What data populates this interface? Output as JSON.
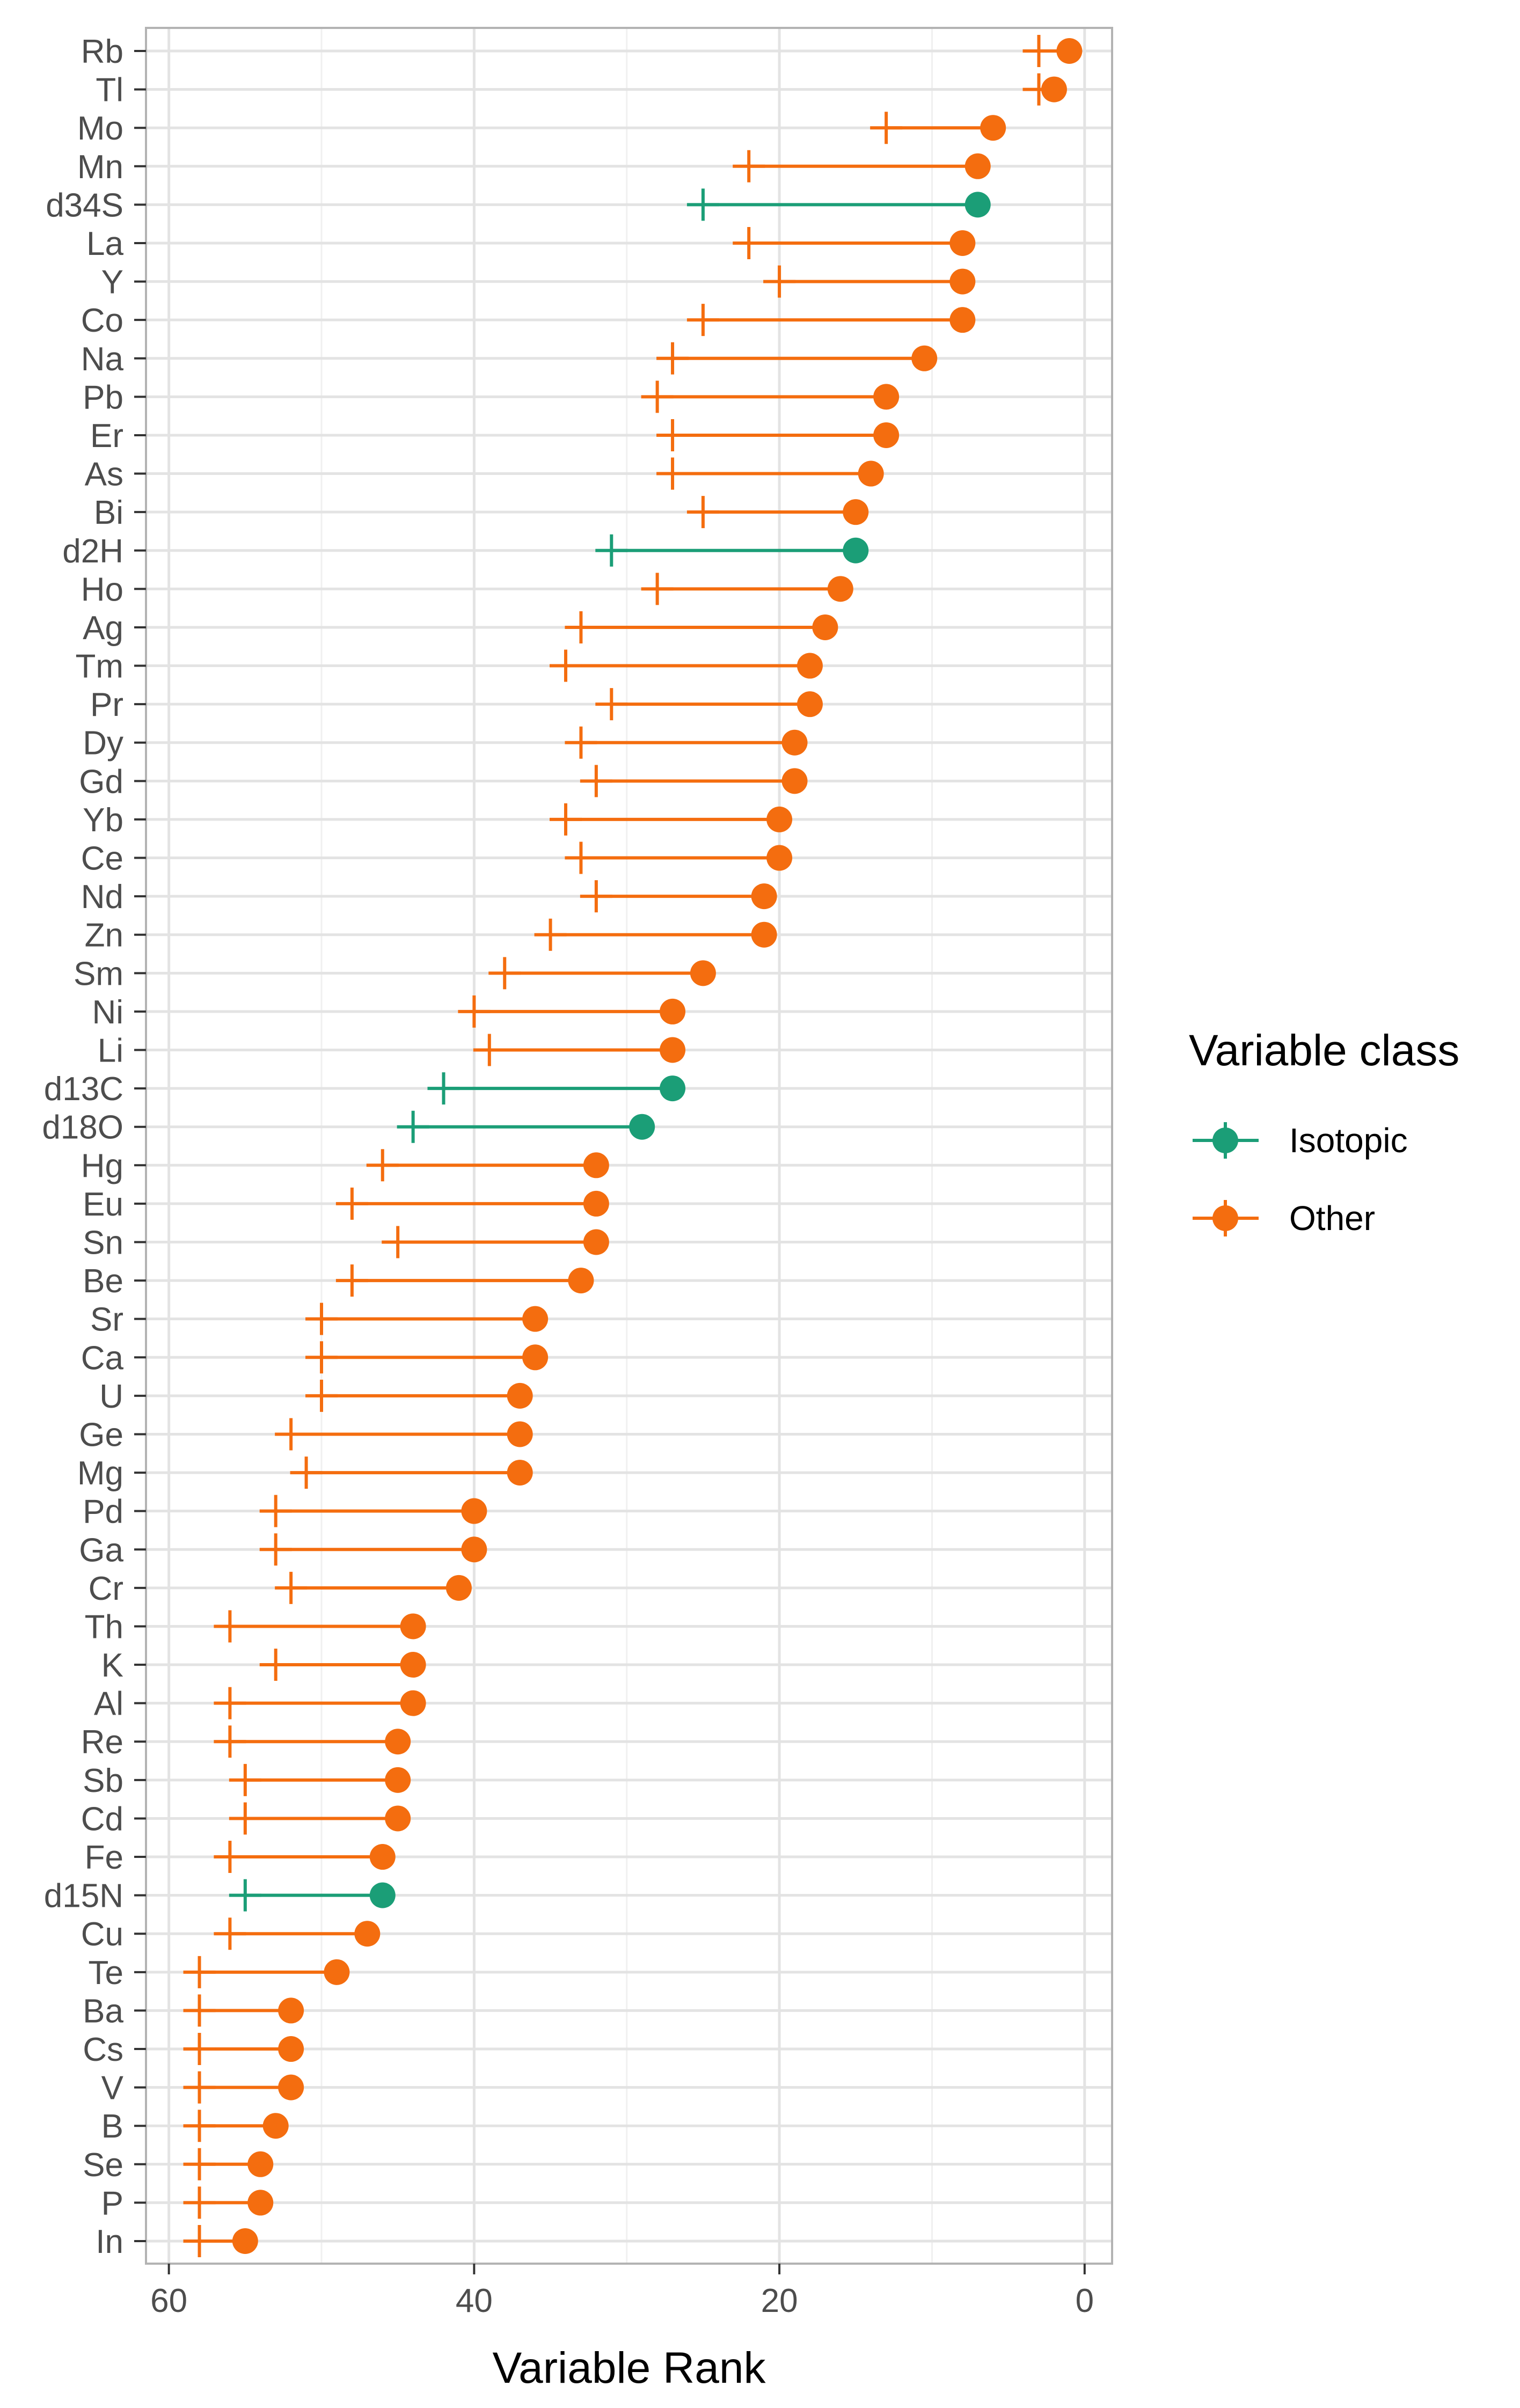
{
  "chart_data": {
    "type": "dumbbell",
    "title": "",
    "xlabel": "Variable Rank",
    "ylabel": "",
    "xlim": [
      61.5,
      -1.8
    ],
    "x_reversed": true,
    "x_ticks": [
      60,
      40,
      20,
      0
    ],
    "grid": true,
    "legend": {
      "title": "Variable class",
      "placement": "right",
      "entries": [
        {
          "name": "Isotopic",
          "color": "#1b9e77"
        },
        {
          "name": "Other",
          "color": "#f46d0f"
        }
      ]
    },
    "series_meaning": {
      "point": "rank (filled circle)",
      "cross": "rank (cross marker)"
    },
    "rows": [
      {
        "label": "Rb",
        "class": "Other",
        "point": 1,
        "cross": 3
      },
      {
        "label": "Tl",
        "class": "Other",
        "point": 2,
        "cross": 3
      },
      {
        "label": "Mo",
        "class": "Other",
        "point": 6,
        "cross": 13
      },
      {
        "label": "Mn",
        "class": "Other",
        "point": 7,
        "cross": 22
      },
      {
        "label": "d34S",
        "class": "Isotopic",
        "point": 7,
        "cross": 25
      },
      {
        "label": "La",
        "class": "Other",
        "point": 8,
        "cross": 22
      },
      {
        "label": "Y",
        "class": "Other",
        "point": 8,
        "cross": 20
      },
      {
        "label": "Co",
        "class": "Other",
        "point": 8,
        "cross": 25
      },
      {
        "label": "Na",
        "class": "Other",
        "point": 10.5,
        "cross": 27
      },
      {
        "label": "Pb",
        "class": "Other",
        "point": 13,
        "cross": 28
      },
      {
        "label": "Er",
        "class": "Other",
        "point": 13,
        "cross": 27
      },
      {
        "label": "As",
        "class": "Other",
        "point": 14,
        "cross": 27
      },
      {
        "label": "Bi",
        "class": "Other",
        "point": 15,
        "cross": 25
      },
      {
        "label": "d2H",
        "class": "Isotopic",
        "point": 15,
        "cross": 31
      },
      {
        "label": "Ho",
        "class": "Other",
        "point": 16,
        "cross": 28
      },
      {
        "label": "Ag",
        "class": "Other",
        "point": 17,
        "cross": 33
      },
      {
        "label": "Tm",
        "class": "Other",
        "point": 18,
        "cross": 34
      },
      {
        "label": "Pr",
        "class": "Other",
        "point": 18,
        "cross": 31
      },
      {
        "label": "Dy",
        "class": "Other",
        "point": 19,
        "cross": 33
      },
      {
        "label": "Gd",
        "class": "Other",
        "point": 19,
        "cross": 32
      },
      {
        "label": "Yb",
        "class": "Other",
        "point": 20,
        "cross": 34
      },
      {
        "label": "Ce",
        "class": "Other",
        "point": 20,
        "cross": 33
      },
      {
        "label": "Nd",
        "class": "Other",
        "point": 21,
        "cross": 32
      },
      {
        "label": "Zn",
        "class": "Other",
        "point": 21,
        "cross": 35
      },
      {
        "label": "Sm",
        "class": "Other",
        "point": 25,
        "cross": 38
      },
      {
        "label": "Ni",
        "class": "Other",
        "point": 27,
        "cross": 40
      },
      {
        "label": "Li",
        "class": "Other",
        "point": 27,
        "cross": 39
      },
      {
        "label": "d13C",
        "class": "Isotopic",
        "point": 27,
        "cross": 42
      },
      {
        "label": "d18O",
        "class": "Isotopic",
        "point": 29,
        "cross": 44
      },
      {
        "label": "Hg",
        "class": "Other",
        "point": 32,
        "cross": 46
      },
      {
        "label": "Eu",
        "class": "Other",
        "point": 32,
        "cross": 48
      },
      {
        "label": "Sn",
        "class": "Other",
        "point": 32,
        "cross": 45
      },
      {
        "label": "Be",
        "class": "Other",
        "point": 33,
        "cross": 48
      },
      {
        "label": "Sr",
        "class": "Other",
        "point": 36,
        "cross": 50
      },
      {
        "label": "Ca",
        "class": "Other",
        "point": 36,
        "cross": 50
      },
      {
        "label": "U",
        "class": "Other",
        "point": 37,
        "cross": 50
      },
      {
        "label": "Ge",
        "class": "Other",
        "point": 37,
        "cross": 52
      },
      {
        "label": "Mg",
        "class": "Other",
        "point": 37,
        "cross": 51
      },
      {
        "label": "Pd",
        "class": "Other",
        "point": 40,
        "cross": 53
      },
      {
        "label": "Ga",
        "class": "Other",
        "point": 40,
        "cross": 53
      },
      {
        "label": "Cr",
        "class": "Other",
        "point": 41,
        "cross": 52
      },
      {
        "label": "Th",
        "class": "Other",
        "point": 44,
        "cross": 56
      },
      {
        "label": "K",
        "class": "Other",
        "point": 44,
        "cross": 53
      },
      {
        "label": "Al",
        "class": "Other",
        "point": 44,
        "cross": 56
      },
      {
        "label": "Re",
        "class": "Other",
        "point": 45,
        "cross": 56
      },
      {
        "label": "Sb",
        "class": "Other",
        "point": 45,
        "cross": 55
      },
      {
        "label": "Cd",
        "class": "Other",
        "point": 45,
        "cross": 55
      },
      {
        "label": "Fe",
        "class": "Other",
        "point": 46,
        "cross": 56
      },
      {
        "label": "d15N",
        "class": "Isotopic",
        "point": 46,
        "cross": 55
      },
      {
        "label": "Cu",
        "class": "Other",
        "point": 47,
        "cross": 56
      },
      {
        "label": "Te",
        "class": "Other",
        "point": 49,
        "cross": 58
      },
      {
        "label": "Ba",
        "class": "Other",
        "point": 52,
        "cross": 58
      },
      {
        "label": "Cs",
        "class": "Other",
        "point": 52,
        "cross": 58
      },
      {
        "label": "V",
        "class": "Other",
        "point": 52,
        "cross": 58
      },
      {
        "label": "B",
        "class": "Other",
        "point": 53,
        "cross": 58
      },
      {
        "label": "Se",
        "class": "Other",
        "point": 54,
        "cross": 58
      },
      {
        "label": "P",
        "class": "Other",
        "point": 54,
        "cross": 58
      },
      {
        "label": "In",
        "class": "Other",
        "point": 55,
        "cross": 58
      }
    ]
  }
}
